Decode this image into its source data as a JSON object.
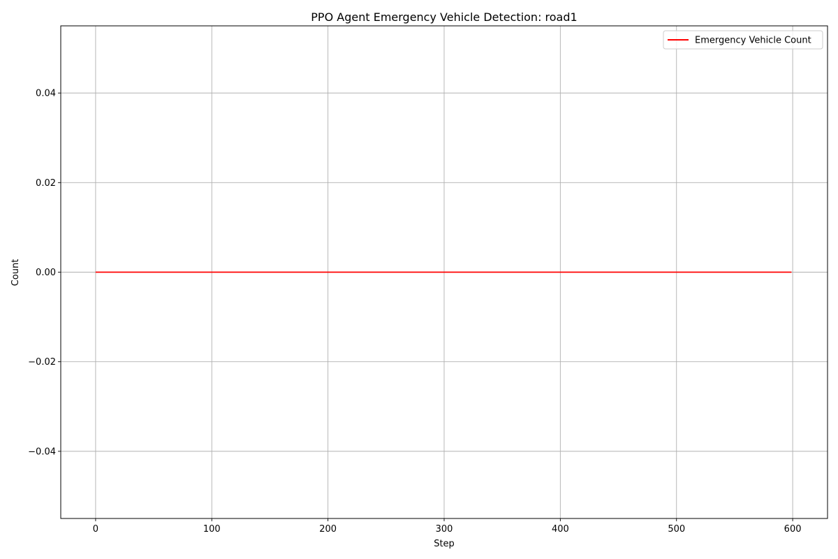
{
  "chart_data": {
    "type": "line",
    "title": "PPO Agent Emergency Vehicle Detection: road1",
    "xlabel": "Step",
    "ylabel": "Count",
    "xlim": [
      -30,
      630
    ],
    "ylim": [
      -0.055,
      0.055
    ],
    "x_ticks": [
      0,
      100,
      200,
      300,
      400,
      500,
      600
    ],
    "x_tick_labels": [
      "0",
      "100",
      "200",
      "300",
      "400",
      "500",
      "600"
    ],
    "y_ticks": [
      -0.04,
      -0.02,
      0.0,
      0.02,
      0.04
    ],
    "y_tick_labels": [
      "−0.04",
      "−0.02",
      "0.00",
      "0.02",
      "0.04"
    ],
    "grid": true,
    "legend_position": "top-right",
    "series": [
      {
        "name": "Emergency Vehicle Count",
        "color": "#ff0000",
        "x": [
          0,
          599
        ],
        "y": [
          0,
          0
        ]
      }
    ]
  }
}
